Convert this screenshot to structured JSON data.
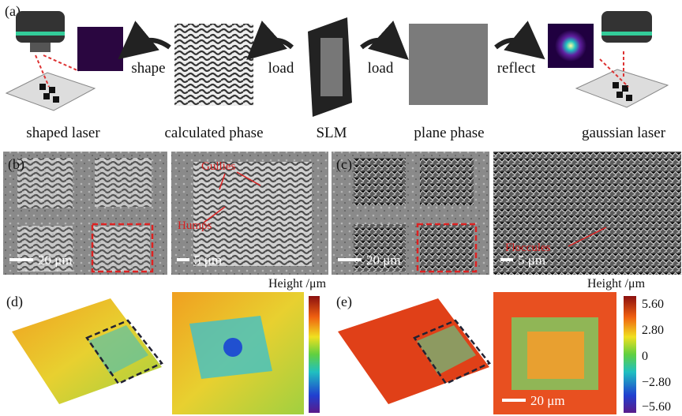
{
  "panel_a": {
    "label": "(a)",
    "items": [
      "shaped laser",
      "calculated phase",
      "SLM",
      "plane phase",
      "gaussian laser"
    ],
    "arrows": [
      "shape",
      "load",
      "load",
      "reflect"
    ]
  },
  "panel_b": {
    "label": "(b)",
    "scale_bars": [
      "20 μm",
      "5 μm"
    ],
    "annotations": [
      "Gullies",
      "Humps"
    ]
  },
  "panel_c": {
    "label": "(c)",
    "scale_bars": [
      "20 μm",
      "5 μm"
    ],
    "annotations": [
      "Floccules"
    ]
  },
  "panel_d": {
    "label": "(d)",
    "colorbar_title": "Height /μm"
  },
  "panel_e": {
    "label": "(e)",
    "colorbar_title": "Height /μm",
    "colorbar_ticks": [
      "5.60",
      "2.80",
      "0",
      "−2.80",
      "−5.60"
    ],
    "scale_bar": "20 μm"
  }
}
